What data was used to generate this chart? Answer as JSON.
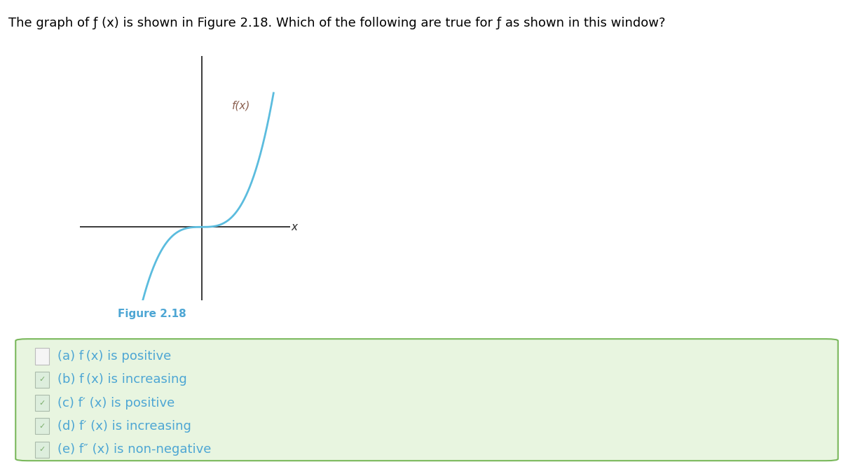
{
  "title_text": "The graph of ƒ (x) is shown in Figure 2.18. Which of the following are true for ƒ as shown in this window?",
  "figure_label": "Figure 2.18",
  "figure_label_color": "#4da6d4",
  "curve_color": "#5bbcde",
  "axis_color": "#2a2a2a",
  "fx_label": "f(x)",
  "fx_label_color": "#8b6050",
  "x_label": "x",
  "x_label_color": "#2a2a2a",
  "checkboxes": [
    {
      "label": "(a) f (x) is positive",
      "checked": false
    },
    {
      "label": "(b) f (x) is increasing",
      "checked": true
    },
    {
      "label": "(c) f′ (x) is positive",
      "checked": true
    },
    {
      "label": "(d) f′ (x) is increasing",
      "checked": true
    },
    {
      "label": "(e) f″ (x) is non-negative",
      "checked": true
    }
  ],
  "checkbox_box_bg": "#e8f5e0",
  "checkbox_box_border": "#7ab85c",
  "checkbox_color_checked": "#7aad6a",
  "title_fontsize": 13,
  "fig_label_fontsize": 11,
  "checkbox_fontsize": 13
}
